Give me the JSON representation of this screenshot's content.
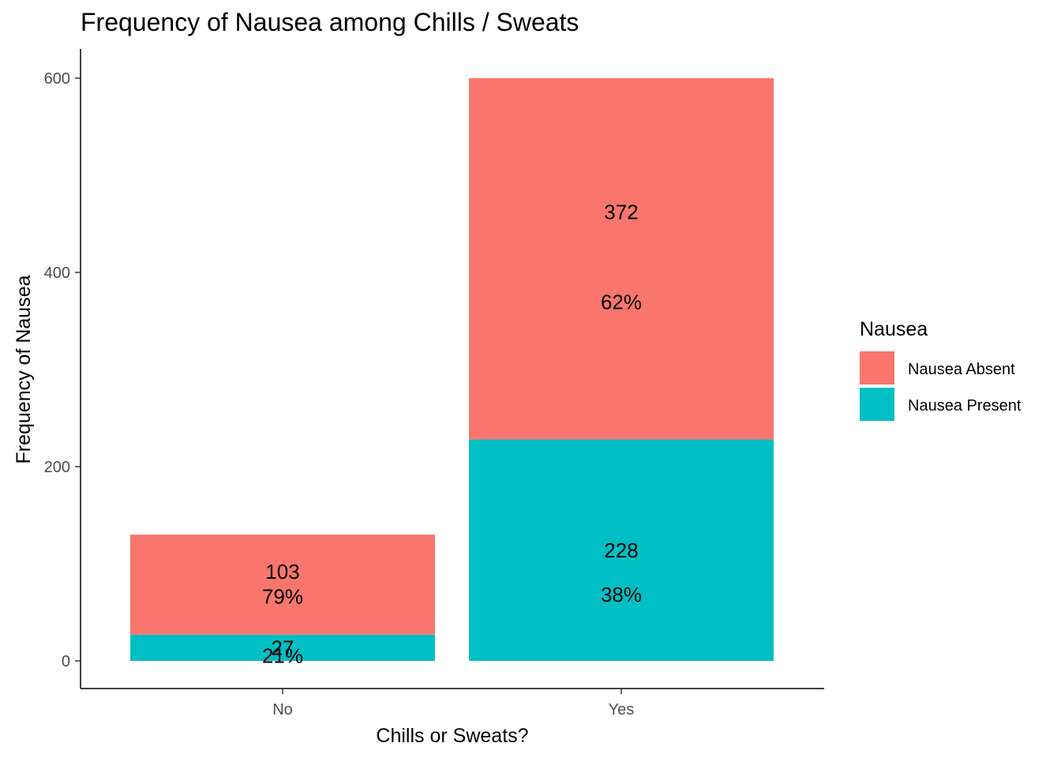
{
  "chart_data": {
    "type": "bar",
    "stacked": true,
    "title": "Frequency of Nausea among Chills / Sweats",
    "xlabel": "Chills or Sweats?",
    "ylabel": "Frequency of Nausea",
    "categories": [
      "No",
      "Yes"
    ],
    "ylim": [
      0,
      630
    ],
    "yticks": [
      0,
      200,
      400,
      600
    ],
    "grid": false,
    "legend": {
      "title": "Nausea",
      "position": "right"
    },
    "series": [
      {
        "name": "Nausea Present",
        "color": "#00BFC4",
        "values": [
          27,
          228
        ],
        "percent_labels": [
          "21%",
          "38%"
        ]
      },
      {
        "name": "Nausea Absent",
        "color": "#F8766D",
        "values": [
          103,
          372
        ],
        "percent_labels": [
          "79%",
          "62%"
        ]
      }
    ]
  }
}
